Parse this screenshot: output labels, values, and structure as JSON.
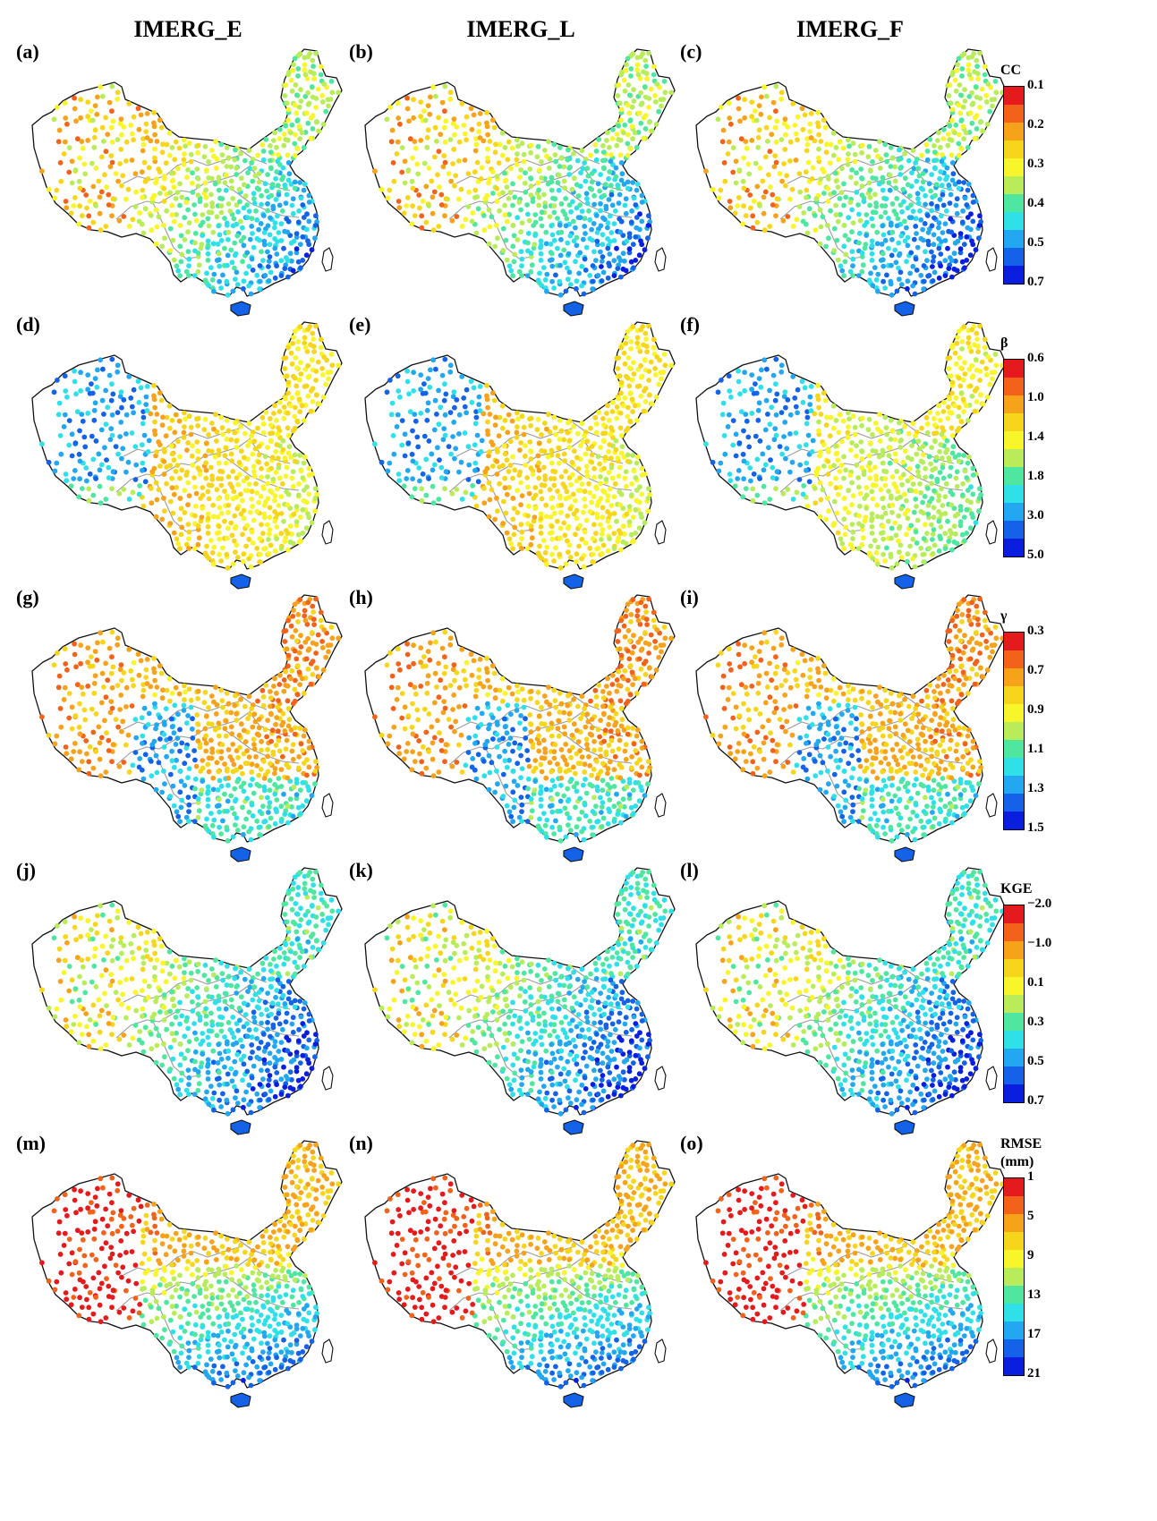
{
  "columns": [
    "IMERG_E",
    "IMERG_L",
    "IMERG_F"
  ],
  "rows": [
    {
      "labels": [
        "(a)",
        "(b)",
        "(c)"
      ],
      "legend": {
        "title": [
          "CC"
        ],
        "ticks": [
          "0.1",
          "0.2",
          "0.3",
          "0.4",
          "0.5",
          "0.7"
        ]
      }
    },
    {
      "labels": [
        "(d)",
        "(e)",
        "(f)"
      ],
      "legend": {
        "title": [
          "β"
        ],
        "ticks": [
          "0.6",
          "1.0",
          "1.4",
          "1.8",
          "3.0",
          "5.0"
        ]
      }
    },
    {
      "labels": [
        "(g)",
        "(h)",
        "(i)"
      ],
      "legend": {
        "title": [
          "γ"
        ],
        "ticks": [
          "0.3",
          "0.7",
          "0.9",
          "1.1",
          "1.3",
          "1.5"
        ]
      }
    },
    {
      "labels": [
        "(j)",
        "(k)",
        "(l)"
      ],
      "legend": {
        "title": [
          "KGE"
        ],
        "ticks": [
          "−2.0",
          "−1.0",
          "0.1",
          "0.3",
          "0.5",
          "0.7"
        ]
      }
    },
    {
      "labels": [
        "(m)",
        "(n)",
        "(o)"
      ],
      "legend": {
        "title": [
          "RMSE",
          "(mm)"
        ],
        "ticks": [
          "1",
          "5",
          "9",
          "13",
          "17",
          "21"
        ]
      }
    }
  ],
  "colormap": [
    "#e41a1c",
    "#f2621b",
    "#f7a21b",
    "#f6d61b",
    "#f9f52b",
    "#b8ec5a",
    "#4fe6a0",
    "#2fe0e8",
    "#22a7f0",
    "#1462e8",
    "#0a1ee0"
  ],
  "colors": {
    "border": "#111111",
    "river": "#9a9a9a"
  }
}
